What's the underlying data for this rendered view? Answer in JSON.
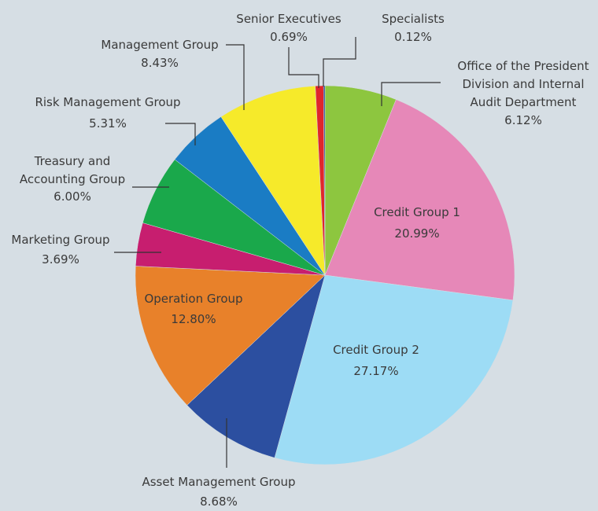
{
  "chart_data": {
    "type": "pie",
    "categories": [
      "Office of the President\nDivision and Internal\nAudit Department",
      "Credit Group 1",
      "Credit Group 2",
      "Asset Management Group",
      "Operation Group",
      "Marketing Group",
      "Treasury and\nAccounting Group",
      "Risk Management Group",
      "Management Group",
      "Senior Executives",
      "Specialists"
    ],
    "values": [
      6.12,
      20.99,
      27.17,
      8.68,
      12.8,
      3.69,
      6.0,
      5.31,
      8.43,
      0.69,
      0.12
    ],
    "value_labels": [
      "6.12%",
      "20.99%",
      "27.17%",
      "8.68%",
      "12.80%",
      "3.69%",
      "6.00%",
      "5.31%",
      "8.43%",
      "0.69%",
      "0.12%"
    ],
    "colors": [
      "#8dc63f",
      "#e688b8",
      "#9ddcf5",
      "#2c4fa0",
      "#e8812a",
      "#c71e6f",
      "#1aa84b",
      "#1a7cc4",
      "#f6ea2a",
      "#e0262b",
      "#1f3b8f"
    ]
  }
}
